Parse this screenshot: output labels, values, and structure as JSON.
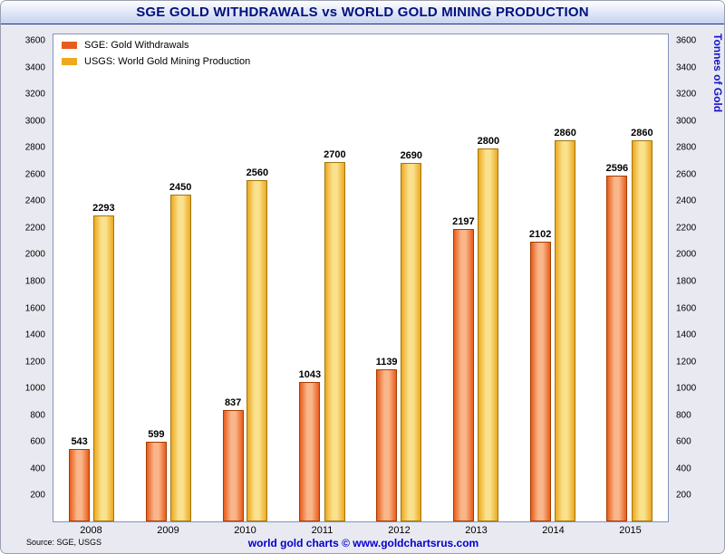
{
  "chart_data": {
    "type": "bar",
    "title": "SGE GOLD WITHDRAWALS vs WORLD GOLD MINING PRODUCTION",
    "categories": [
      "2008",
      "2009",
      "2010",
      "2011",
      "2012",
      "2013",
      "2014",
      "2015"
    ],
    "series": [
      {
        "name": "SGE: Gold Withdrawals",
        "short": "sge",
        "values": [
          543,
          599,
          837,
          1043,
          1139,
          2197,
          2102,
          2596
        ],
        "color": "#e85c1c",
        "light_color": "#f9b68a",
        "edge_color": "#a83c00"
      },
      {
        "name": "USGS: World Gold Mining Production",
        "short": "usgs",
        "values": [
          2293,
          2450,
          2560,
          2700,
          2690,
          2800,
          2860,
          2860
        ],
        "color": "#eda81e",
        "light_color": "#f9e18e",
        "edge_color": "#a3760c"
      }
    ],
    "ylabel_right": "Tonnes of Gold",
    "ylim": [
      0,
      3600
    ],
    "ytick_step": 200,
    "grid": false,
    "legend_position": "top-left",
    "value_labels": true
  },
  "footer": {
    "source": "Source: SGE, USGS",
    "branding": "world gold charts © www.goldchartsrus.com"
  },
  "colors": {
    "title_text": "#00107e",
    "right_axis_title": "#1515c8",
    "branding_text": "#0000cd",
    "plot_border": "#8493bd",
    "window_background": "#e9e9f2"
  }
}
